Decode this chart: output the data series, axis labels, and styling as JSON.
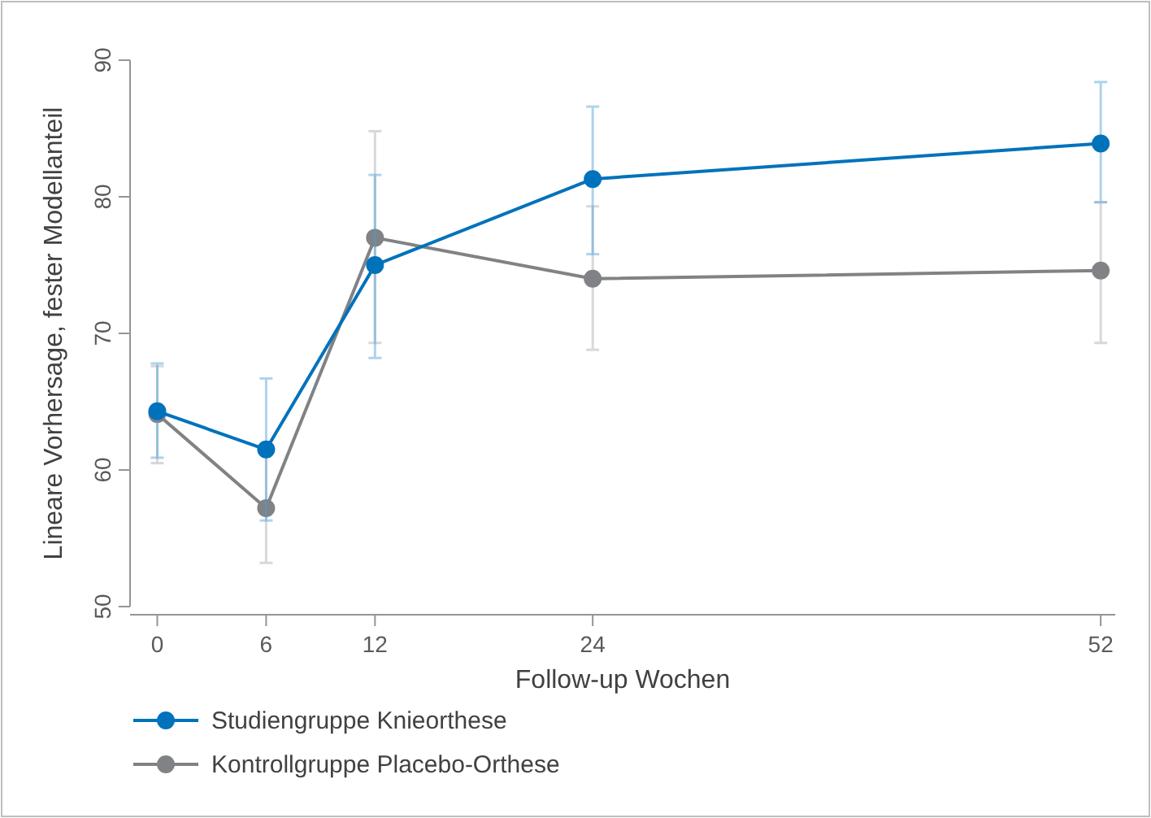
{
  "chart_data": {
    "type": "line",
    "xlabel": "Follow-up Wochen",
    "ylabel": "Lineare Vorhersage, fester Modellanteil",
    "x": [
      0,
      6,
      12,
      24,
      52
    ],
    "xlim": [
      -1.5,
      52.8
    ],
    "xticks": [
      0,
      6,
      12,
      24,
      52
    ],
    "ylim": [
      50,
      90
    ],
    "yticks": [
      50,
      60,
      70,
      80,
      90
    ],
    "marker": "circle",
    "legend": "bottom",
    "grid": false,
    "series": [
      {
        "name": "Studiengruppe Knieorthese",
        "color": "#0072bc",
        "values": [
          64.3,
          61.5,
          75.0,
          81.3,
          83.9
        ],
        "errors": [
          [
            60.9,
            67.8
          ],
          [
            56.3,
            66.7
          ],
          [
            68.2,
            81.6
          ],
          [
            75.8,
            86.6
          ],
          [
            79.6,
            88.4
          ]
        ]
      },
      {
        "name": "Kontrollgruppe Placebo-Orthese",
        "color": "#808285",
        "values": [
          64.1,
          57.2,
          77.0,
          74.0,
          74.6
        ],
        "errors": [
          [
            60.5,
            67.6
          ],
          [
            53.2,
            61.2
          ],
          [
            69.3,
            84.8
          ],
          [
            68.8,
            79.3
          ],
          [
            69.3,
            79.6
          ]
        ]
      }
    ]
  }
}
